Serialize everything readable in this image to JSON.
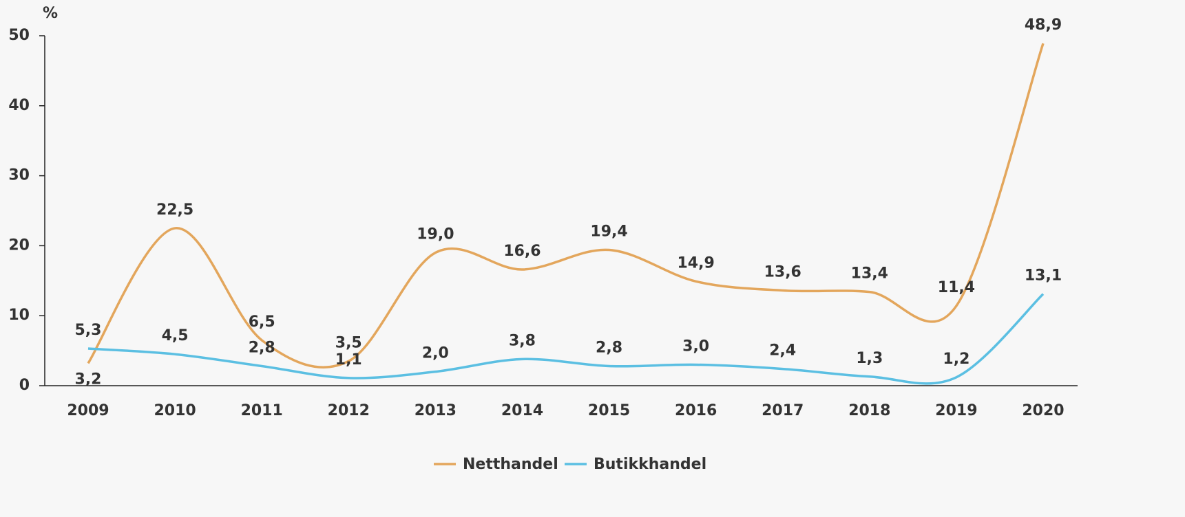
{
  "chart_data": {
    "type": "line",
    "y_axis_label": "%",
    "categories": [
      "2009",
      "2010",
      "2011",
      "2012",
      "2013",
      "2014",
      "2015",
      "2016",
      "2017",
      "2018",
      "2019",
      "2020"
    ],
    "series": [
      {
        "name": "Netthandel",
        "color": "#e3a65c",
        "values": [
          3.2,
          22.5,
          6.5,
          3.5,
          19.0,
          16.6,
          19.4,
          14.9,
          13.6,
          13.4,
          11.4,
          48.9
        ],
        "value_labels": [
          "3,2",
          "22,5",
          "6,5",
          "3,5",
          "19,0",
          "16,6",
          "19,4",
          "14,9",
          "13,6",
          "13,4",
          "11,4",
          "48,9"
        ]
      },
      {
        "name": "Butikkhandel",
        "color": "#5bbfe2",
        "values": [
          5.3,
          4.5,
          2.8,
          1.1,
          2.0,
          3.8,
          2.8,
          3.0,
          2.4,
          1.3,
          1.2,
          13.1
        ],
        "value_labels": [
          "5,3",
          "4,5",
          "2,8",
          "1,1",
          "2,0",
          "3,8",
          "2,8",
          "3,0",
          "2,4",
          "1,3",
          "1,2",
          "13,1"
        ]
      }
    ],
    "ylim": [
      0,
      50
    ],
    "yticks": [
      0,
      10,
      20,
      30,
      40,
      50
    ],
    "grid": false,
    "legend": "bottom"
  }
}
